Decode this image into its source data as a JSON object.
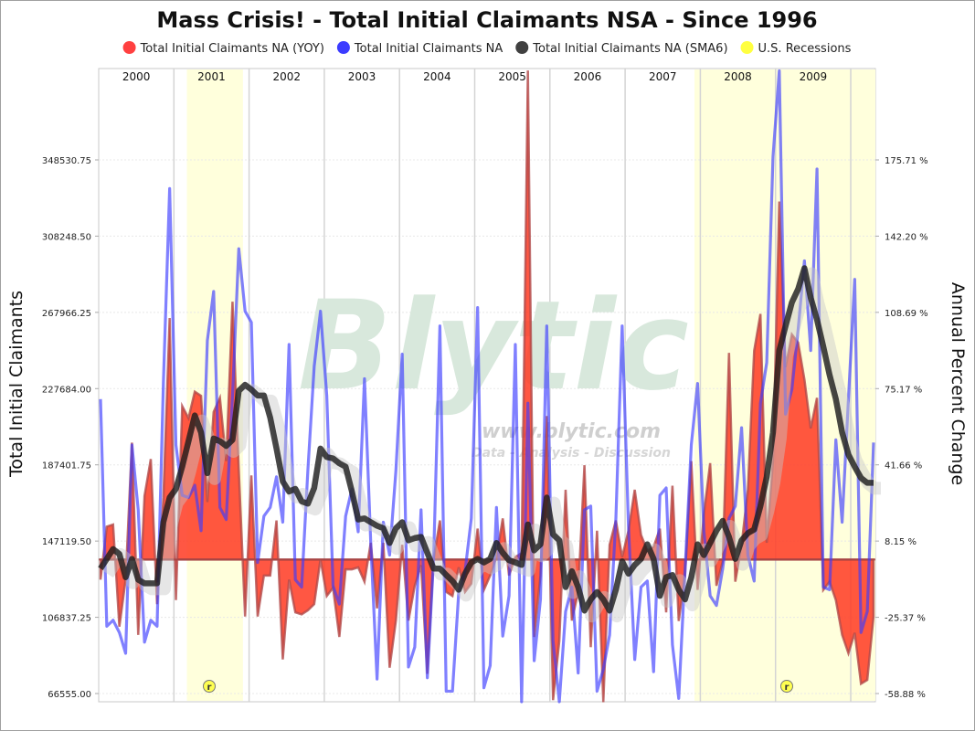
{
  "chart_data": {
    "type": "line",
    "title": "Mass Crisis! - Total Initial Claimants NSA - Since 1996",
    "ylabel_left": "Total Initial Claimants",
    "ylabel_right": "Annual Percent Change",
    "left_ticks": [
      "66555.00",
      "106837.25",
      "147119.50",
      "187401.75",
      "227684.00",
      "267966.25",
      "308248.50",
      "348530.75"
    ],
    "left_tick_values": [
      66555,
      106837.25,
      147119.5,
      187401.75,
      227684,
      267966.25,
      308248.5,
      348530.75
    ],
    "right_ticks": [
      "-58.88 %",
      "-25.37 %",
      "8.15 %",
      "41.66 %",
      "75.17 %",
      "108.69 %",
      "142.20 %",
      "175.71 %"
    ],
    "right_tick_values": [
      -58.88,
      -25.37,
      8.15,
      41.66,
      75.17,
      108.69,
      142.2,
      175.71
    ],
    "ylim_left": [
      66555,
      348530.75
    ],
    "ylim_right": [
      -58.88,
      175.71
    ],
    "x_start": "2000-01",
    "frequency": "monthly",
    "years": [
      "2000",
      "2001",
      "2002",
      "2003",
      "2004",
      "2005",
      "2006",
      "2007",
      "2008",
      "2009"
    ],
    "recessions": [
      {
        "start": "2001-03",
        "end": "2001-11",
        "marker": "r"
      },
      {
        "start": "2007-12",
        "end": "2010-04",
        "marker": "r"
      }
    ],
    "legend": [
      {
        "label": "Total Initial Claimants NA (YOY)",
        "color": "#ff4040"
      },
      {
        "label": "Total Initial Claimants NA",
        "color": "#3c3cff"
      },
      {
        "label": "Total Initial Claimants NA (SMA6)",
        "color": "#404040"
      },
      {
        "label": "U.S. Recessions",
        "color": "#ffff40"
      }
    ],
    "legend_position": "top",
    "series": [
      {
        "name": "Total Initial Claimants NA (YOY)",
        "axis": "right",
        "unit": "percent",
        "type": "area",
        "values": [
          -8.8,
          14.5,
          15.4,
          -29.5,
          -8.8,
          51.4,
          -33.1,
          28.0,
          44.2,
          -19.6,
          27.1,
          106.2,
          -17.8,
          67.5,
          62.2,
          73.8,
          72.0,
          25.3,
          64.9,
          71.1,
          43.3,
          113.4,
          39.7,
          -25.0,
          37.0,
          -25.0,
          -7.0,
          -7.0,
          17.2,
          -43.9,
          -8.8,
          -23.2,
          -24.1,
          -22.3,
          -19.6,
          0.2,
          -16.0,
          -12.4,
          -34.0,
          -4.3,
          -4.3,
          -3.4,
          -9.7,
          7.4,
          -21.4,
          7.4,
          -47.5,
          -26.8,
          6.5,
          -26.8,
          -11.5,
          -2.5,
          -50.2,
          0.2,
          17.2,
          -14.2,
          -16.0,
          -3.4,
          -14.2,
          -10.6,
          13.6,
          -13.3,
          -7.0,
          1.1,
          18.1,
          -7.0,
          1.1,
          2.9,
          215.0,
          -34.0,
          -7.0,
          63.1,
          -61.8,
          -35.8,
          30.7,
          -26.8,
          -14.2,
          41.5,
          -38.5,
          12.7,
          -62.7,
          6.5,
          17.2,
          1.1,
          12.7,
          30.7,
          10.9,
          3.8,
          5.6,
          13.6,
          -23.2,
          32.5,
          -27.0,
          -7.0,
          43.3,
          -13.3,
          20.0,
          42.4,
          -11.5,
          -0.8,
          90.9,
          -9.7,
          6.5,
          30.7,
          91.8,
          108.0,
          7.4,
          43.3,
          157.4,
          84.6,
          99.0,
          95.4,
          79.2,
          57.7,
          71.1,
          -13.3,
          -9.7,
          -17.8,
          -33.1,
          -41.2,
          -32.2,
          -54.6,
          -52.9,
          -25.0
        ]
      },
      {
        "name": "Total Initial Claimants NA",
        "axis": "left",
        "unit": "thousands",
        "type": "line",
        "values": [
          222.1,
          102.1,
          105.3,
          98.8,
          87.8,
          197.9,
          163.6,
          93.7,
          105.3,
          102.1,
          230.4,
          333.4,
          197.9,
          171.3,
          170.1,
          176.6,
          152.6,
          253.1,
          279.0,
          164.9,
          158.5,
          224.0,
          301.6,
          268.6,
          262.7,
          135.8,
          160.3,
          164.9,
          181.1,
          157.1,
          251.0,
          126.7,
          122.8,
          185.0,
          239.5,
          268.6,
          224.0,
          123.4,
          113.8,
          160.3,
          174.7,
          152.0,
          232.9,
          146.1,
          74.2,
          157.1,
          139.7,
          184.4,
          245.9,
          80.6,
          91.1,
          163.6,
          74.9,
          137.7,
          260.8,
          67.8,
          67.8,
          120.2,
          131.2,
          159.1,
          270.5,
          69.6,
          81.3,
          164.9,
          96.9,
          118.2,
          251.0,
          62.0,
          220.0,
          83.9,
          116.3,
          260.8,
          94.3,
          62.0,
          109.9,
          122.8,
          77.4,
          163.6,
          165.6,
          67.8,
          79.4,
          97.5,
          159.1,
          260.8,
          155.2,
          84.5,
          122.8,
          126.0,
          78.1,
          171.3,
          175.2,
          92.3,
          64.0,
          131.2,
          197.9,
          230.4,
          152.6,
          118.2,
          113.1,
          132.6,
          159.1,
          165.6,
          207.0,
          139.7,
          126.0,
          220.0,
          241.4,
          350.3,
          395.6,
          214.2,
          227.2,
          259.0,
          295.2,
          247.8,
          343.7,
          122.8,
          121.4,
          200.6,
          157.1,
          222.1,
          285.4,
          98.8,
          109.9,
          199.2
        ]
      },
      {
        "name": "Total Initial Claimants NA (SMA6)",
        "axis": "left",
        "unit": "thousands",
        "type": "line",
        "values": [
          132.6,
          137.7,
          142.9,
          140.3,
          128.0,
          137.7,
          126.7,
          124.8,
          124.8,
          124.8,
          157.1,
          170.1,
          174.7,
          186.4,
          199.9,
          213.5,
          204.5,
          183.0,
          201.3,
          199.9,
          197.4,
          200.6,
          226.5,
          229.7,
          227.2,
          224.0,
          224.0,
          212.3,
          196.0,
          178.6,
          173.3,
          174.7,
          168.1,
          166.9,
          175.2,
          196.0,
          191.5,
          190.8,
          188.2,
          186.4,
          173.3,
          158.5,
          159.1,
          157.1,
          155.2,
          153.9,
          146.1,
          153.9,
          157.1,
          147.5,
          148.7,
          149.3,
          140.9,
          132.6,
          132.6,
          129.2,
          126.0,
          121.4,
          129.9,
          135.8,
          137.7,
          135.8,
          137.7,
          146.1,
          140.9,
          137.0,
          135.8,
          134.5,
          155.9,
          142.2,
          145.4,
          170.1,
          150.7,
          147.5,
          122.8,
          131.2,
          122.8,
          110.4,
          116.3,
          120.2,
          116.3,
          110.4,
          121.4,
          136.4,
          129.9,
          134.5,
          137.7,
          145.4,
          137.7,
          118.2,
          128.0,
          129.2,
          121.4,
          116.3,
          128.0,
          145.4,
          139.7,
          146.1,
          152.6,
          157.8,
          149.3,
          137.7,
          147.5,
          151.3,
          153.2,
          165.6,
          181.1,
          204.5,
          247.8,
          260.8,
          273.2,
          280.3,
          291.3,
          275.7,
          264.1,
          249.9,
          234.9,
          222.1,
          204.5,
          192.8,
          186.4,
          180.5,
          177.9,
          177.9
        ]
      }
    ],
    "watermark": {
      "logo": "Blytic",
      "url": "www.blytic.com",
      "tagline": "Data - Analysis - Discussion"
    }
  }
}
